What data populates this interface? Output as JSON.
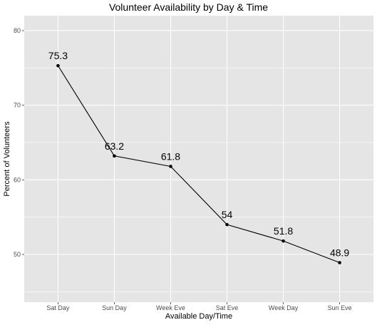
{
  "chart_data": {
    "type": "line",
    "title": "Volunteer Availability by Day & Time",
    "xlabel": "Available Day/Time",
    "ylabel": "Percent of Volunteers",
    "categories": [
      "Sat Day",
      "Sun Day",
      "Week Eve",
      "Sat Eve",
      "Week Day",
      "Sun Eve"
    ],
    "values": [
      75.3,
      63.2,
      61.8,
      54,
      51.8,
      48.9
    ],
    "data_labels": [
      "75.3",
      "63.2",
      "61.8",
      "54",
      "51.8",
      "48.9"
    ],
    "yticks": [
      50,
      60,
      70,
      80
    ],
    "ytick_labels": [
      "50",
      "60",
      "70",
      "80"
    ],
    "ylim": [
      43.6,
      82
    ],
    "grid": true,
    "colors": {
      "panel": "#e5e5e5",
      "gridline": "#ffffff",
      "line": "#000000",
      "point": "#000000"
    }
  }
}
